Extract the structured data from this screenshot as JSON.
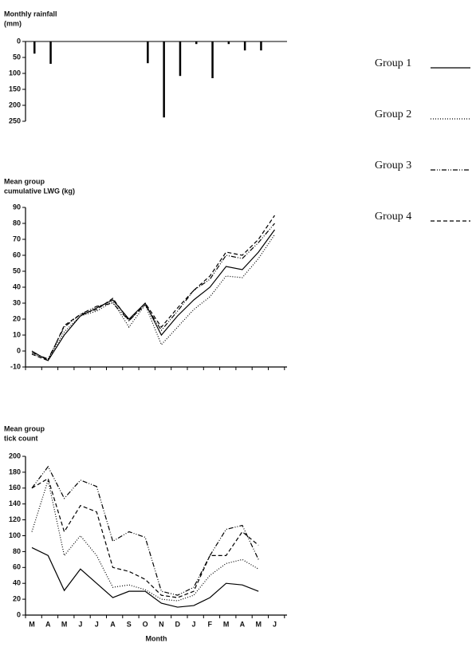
{
  "chart_data": [
    {
      "type": "bar",
      "ylabel": [
        "Monthly rainfall",
        "(mm)"
      ],
      "ylim": [
        0,
        250
      ],
      "y_inverted": true,
      "yticks": [
        0,
        50,
        100,
        150,
        200,
        250
      ],
      "color": "#000000",
      "values": [
        38,
        70,
        0,
        0,
        0,
        0,
        0,
        68,
        238,
        108,
        8,
        115,
        8,
        28,
        28,
        0
      ]
    },
    {
      "type": "line",
      "ylabel": [
        "Mean group",
        "cumulative LWG (kg)"
      ],
      "ylim": [
        -10,
        90
      ],
      "yticks": [
        -10,
        0,
        10,
        20,
        30,
        40,
        50,
        60,
        70,
        80,
        90
      ],
      "series": [
        {
          "name": "Group 1",
          "color": "#000000",
          "dash": "none",
          "values": [
            0,
            -6,
            10,
            22,
            27,
            32,
            20,
            30,
            10,
            22,
            32,
            40,
            53,
            51,
            62,
            76
          ]
        },
        {
          "name": "Group 2",
          "color": "#000000",
          "dash": "1,2",
          "values": [
            -2,
            -5,
            12,
            22,
            25,
            31,
            15,
            29,
            4,
            15,
            26,
            34,
            47,
            46,
            58,
            73
          ]
        },
        {
          "name": "Group 3",
          "color": "#000000",
          "dash": "6,2,1,2,1,2",
          "values": [
            -1,
            -5,
            15,
            23,
            28,
            30,
            19,
            29,
            13,
            25,
            38,
            45,
            60,
            58,
            68,
            80
          ]
        },
        {
          "name": "Group 4",
          "color": "#000000",
          "dash": "5,3",
          "values": [
            -2,
            -6,
            16,
            23,
            26,
            33,
            19,
            30,
            15,
            27,
            38,
            47,
            62,
            60,
            70,
            85
          ]
        }
      ]
    },
    {
      "type": "line",
      "ylabel": [
        "Mean group",
        "tick count"
      ],
      "xlabel": "Month",
      "ylim": [
        0,
        200
      ],
      "yticks": [
        0,
        20,
        40,
        60,
        80,
        100,
        120,
        140,
        160,
        180,
        200
      ],
      "categories": [
        "M",
        "A",
        "M",
        "J",
        "J",
        "A",
        "S",
        "O",
        "N",
        "D",
        "J",
        "F",
        "M",
        "A",
        "M",
        "J"
      ],
      "series": [
        {
          "color": "#000000",
          "dash": "none",
          "values": [
            85,
            75,
            31,
            58,
            40,
            22,
            30,
            30,
            15,
            10,
            12,
            22,
            40,
            38,
            30,
            null
          ]
        },
        {
          "color": "#000000",
          "dash": "1,2",
          "values": [
            105,
            170,
            75,
            100,
            75,
            35,
            38,
            32,
            20,
            18,
            25,
            50,
            65,
            70,
            58,
            null
          ]
        },
        {
          "color": "#000000",
          "dash": "6,2,1,2,1,2",
          "values": [
            160,
            187,
            147,
            170,
            162,
            93,
            105,
            98,
            30,
            25,
            35,
            75,
            108,
            113,
            70,
            null
          ]
        },
        {
          "color": "#000000",
          "dash": "5,3",
          "values": [
            160,
            172,
            105,
            138,
            130,
            60,
            55,
            45,
            25,
            22,
            30,
            75,
            75,
            105,
            88,
            null
          ]
        }
      ]
    }
  ]
}
